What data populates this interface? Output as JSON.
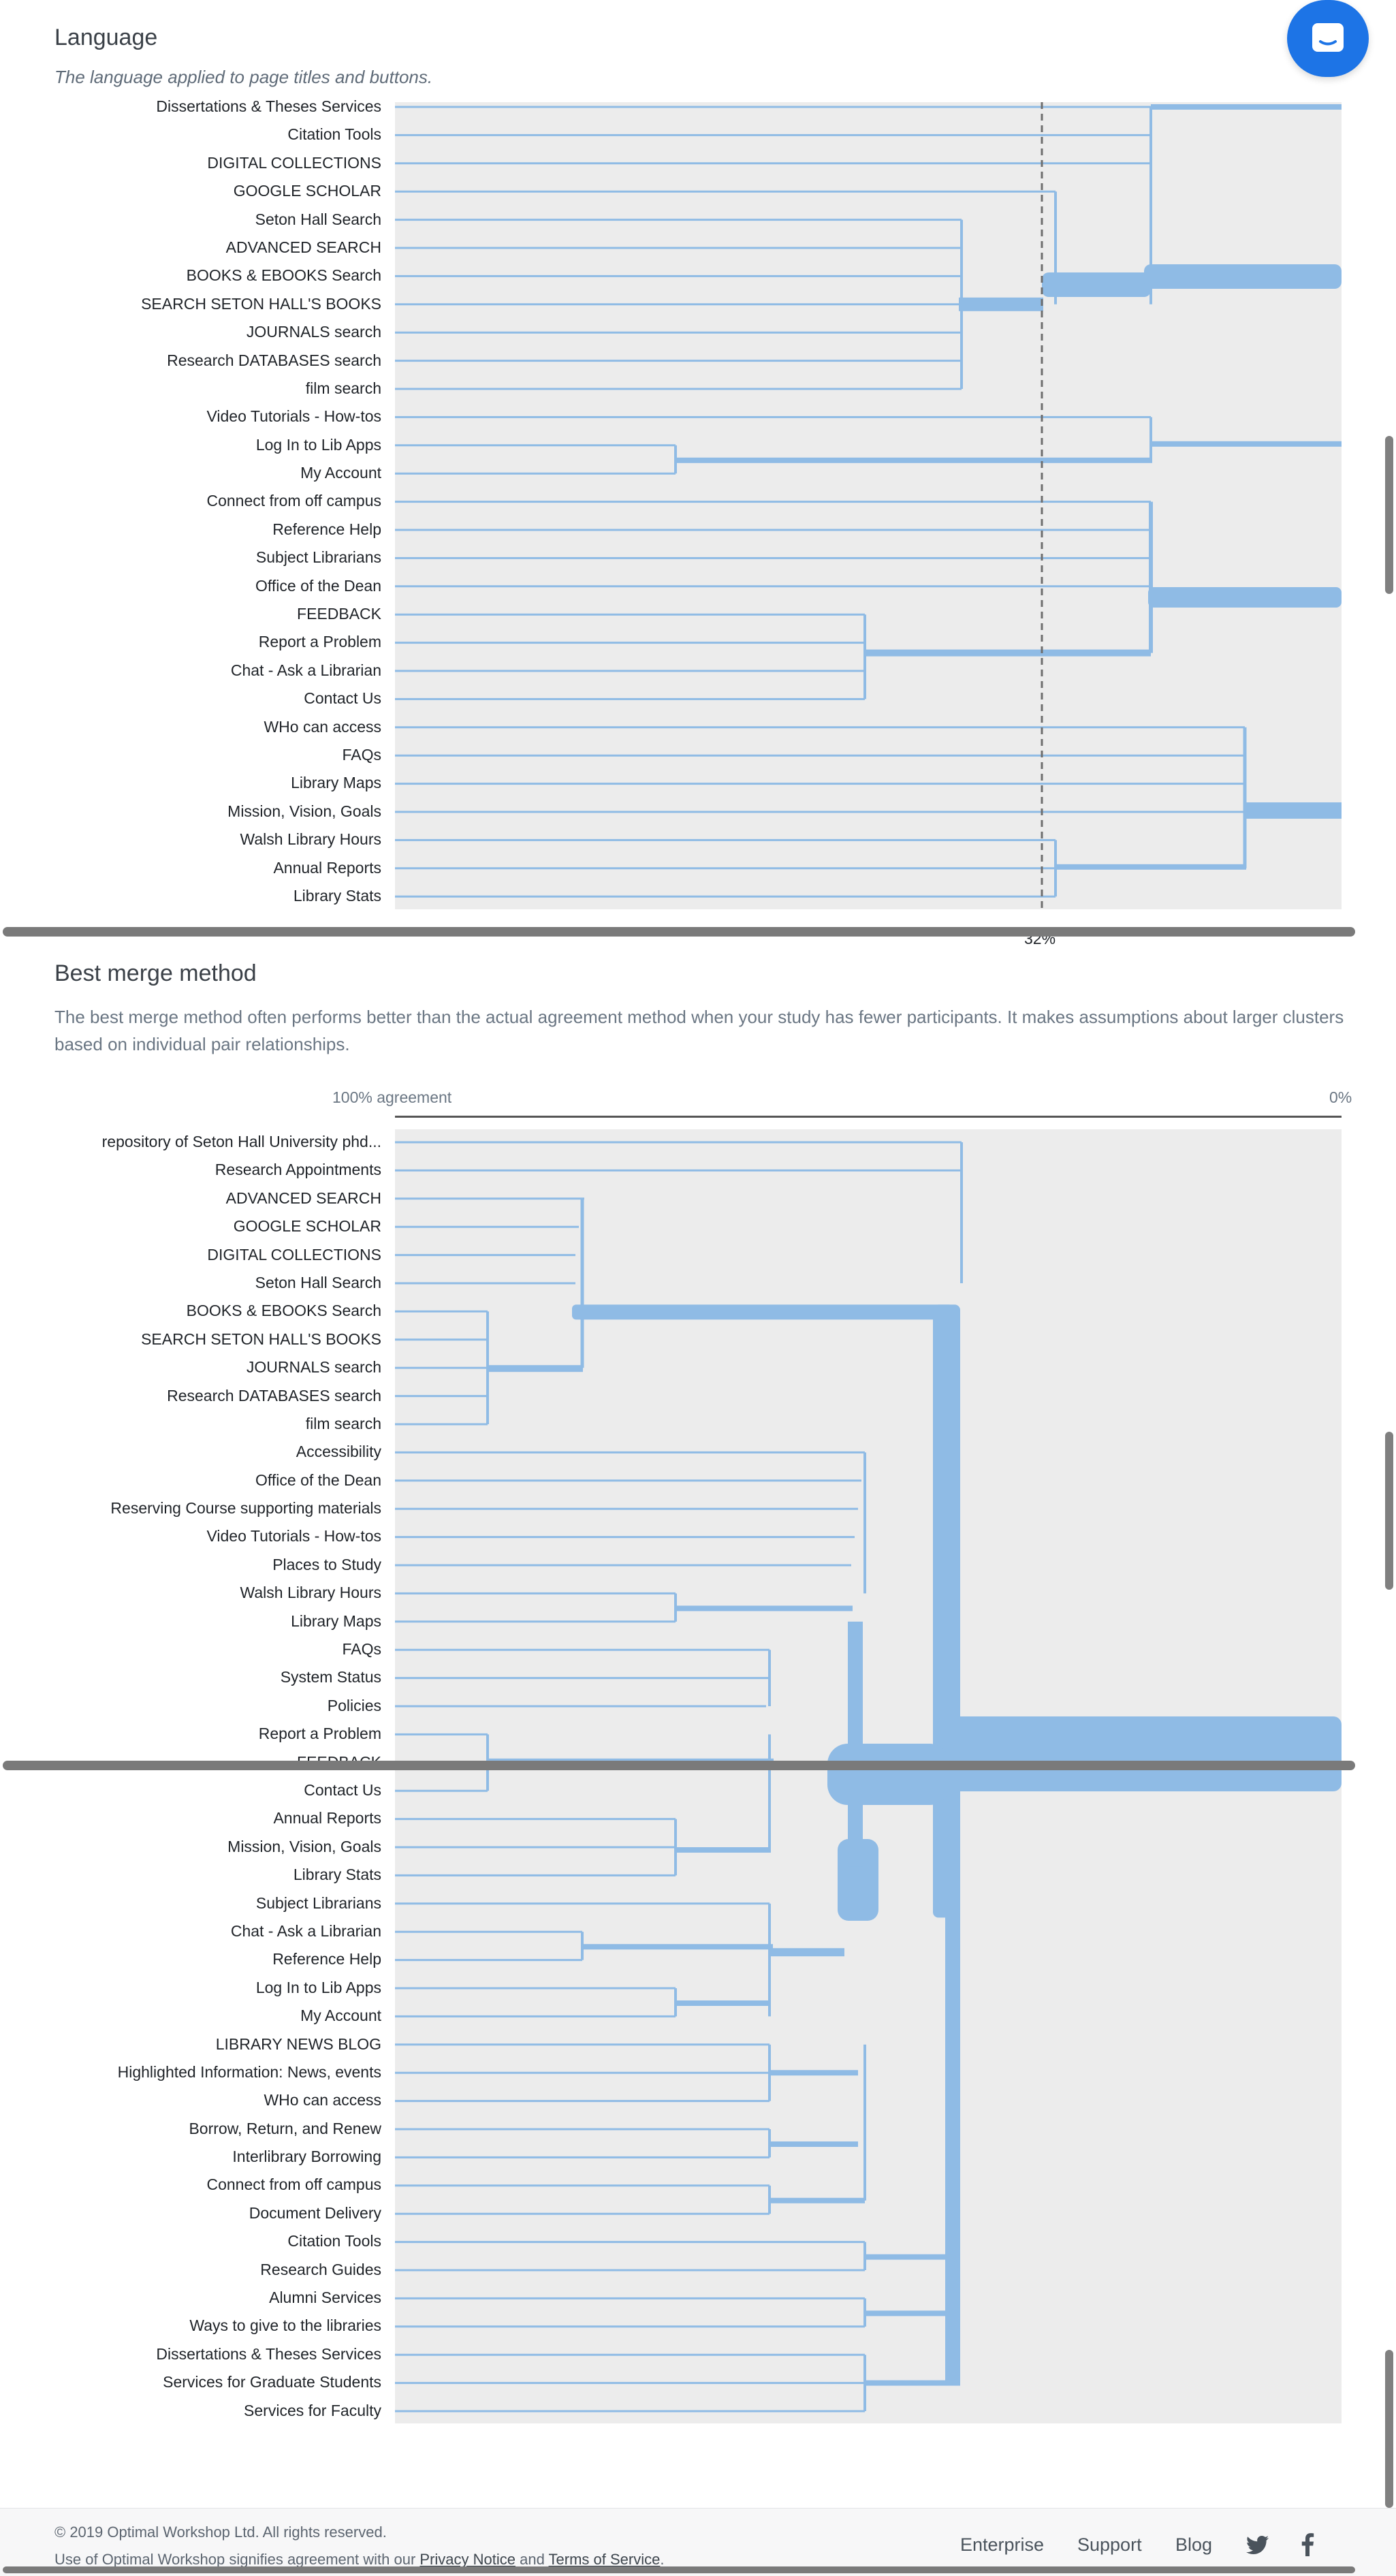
{
  "chat": {
    "icon": "chat-bubble-icon",
    "color": "#1d74e6"
  },
  "language_section": {
    "title": "Language",
    "subtitle": "The language applied to page titles and buttons.",
    "threshold_label": "32%",
    "items": [
      "Dissertations & Theses Services",
      "Citation Tools",
      "DIGITAL COLLECTIONS",
      "GOOGLE SCHOLAR",
      "Seton Hall Search",
      "ADVANCED SEARCH",
      "BOOKS & EBOOKS Search",
      "SEARCH SETON HALL'S BOOKS",
      "JOURNALS search",
      "Research DATABASES search",
      "film search",
      "Video Tutorials - How-tos",
      "Log In to Lib Apps",
      "My Account",
      "Connect from off campus",
      "Reference Help",
      "Subject Librarians",
      "Office of the Dean",
      "FEEDBACK",
      "Report a Problem",
      "Chat - Ask a Librarian",
      "Contact Us",
      "WHo can access",
      "FAQs",
      "Library Maps",
      "Mission, Vision, Goals",
      "Walsh Library Hours",
      "Annual Reports",
      "Library Stats"
    ]
  },
  "best_merge_section": {
    "title": "Best merge method",
    "description": "The best merge method often performs better than the actual agreement method when your study has fewer participants. It makes assumptions about larger clusters based on individual pair relationships.",
    "axis_left": "100% agreement",
    "axis_right": "0%",
    "items": [
      "repository of Seton Hall University phd...",
      "Research Appointments",
      "ADVANCED SEARCH",
      "GOOGLE SCHOLAR",
      "DIGITAL COLLECTIONS",
      "Seton Hall Search",
      "BOOKS & EBOOKS Search",
      "SEARCH SETON HALL'S BOOKS",
      "JOURNALS search",
      "Research DATABASES search",
      "film search",
      "Accessibility",
      "Office of the Dean",
      "Reserving Course supporting materials",
      "Video Tutorials - How-tos",
      "Places to Study",
      "Walsh Library Hours",
      "Library Maps",
      "FAQs",
      "System Status",
      "Policies",
      "Report a Problem",
      "FEEDBACK",
      "Contact Us",
      "Annual Reports",
      "Mission, Vision, Goals",
      "Library Stats",
      "Subject Librarians",
      "Chat - Ask a Librarian",
      "Reference Help",
      "Log In to Lib Apps",
      "My Account",
      "LIBRARY NEWS BLOG",
      "Highlighted Information: News, events",
      "WHo can access",
      "Borrow, Return, and Renew",
      "Interlibrary Borrowing",
      "Connect from off campus",
      "Document Delivery",
      "Citation Tools",
      "Research Guides",
      "Alumni Services",
      "Ways to give to the libraries",
      "Dissertations & Theses Services",
      "Services for Graduate Students",
      "Services for Faculty"
    ]
  },
  "footer": {
    "copyright": "© 2019 Optimal Workshop Ltd. All rights reserved.",
    "legal_prefix": "Use of Optimal Workshop signifies agreement with our ",
    "privacy": "Privacy Notice",
    "and": " and ",
    "terms": "Terms of Service",
    "period": ".",
    "nav": [
      "Enterprise",
      "Support",
      "Blog"
    ],
    "social": [
      "twitter-icon",
      "facebook-icon"
    ]
  },
  "colors": {
    "branch": "#8fbbe5",
    "plot_bg": "#ececec",
    "accent": "#1d74e6"
  }
}
